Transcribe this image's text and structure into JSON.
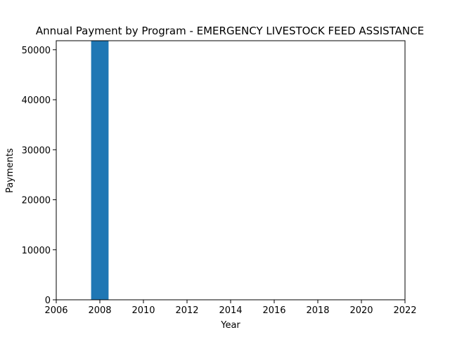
{
  "chart_data": {
    "type": "bar",
    "title": "Annual Payment by Program - EMERGENCY LIVESTOCK FEED ASSISTANCE",
    "xlabel": "Year",
    "ylabel": "Payments",
    "x": [
      2008
    ],
    "values": [
      51800
    ],
    "xlim": [
      2006,
      2022
    ],
    "ylim": [
      0,
      51800
    ],
    "xticks": [
      2006,
      2008,
      2010,
      2012,
      2014,
      2016,
      2018,
      2020,
      2022
    ],
    "yticks": [
      0,
      10000,
      20000,
      30000,
      40000,
      50000
    ],
    "bar_width": 0.8,
    "bar_color": "#1f77b4",
    "grid": false,
    "legend": "none"
  }
}
